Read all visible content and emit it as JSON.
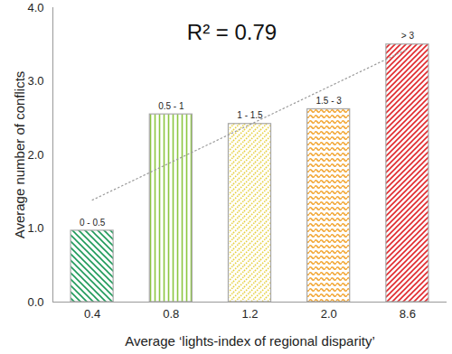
{
  "chart_data": {
    "type": "bar",
    "categories": [
      "0.4",
      "0.8",
      "1.2",
      "2.0",
      "8.6"
    ],
    "values": [
      0.97,
      2.55,
      2.42,
      2.62,
      3.5
    ],
    "colors": [
      "#1f9a5a",
      "#8cc640",
      "#e6cf3c",
      "#f2a531",
      "#e0282c"
    ],
    "bar_labels": [
      "0 - 0.5",
      "0.5 - 1",
      "1 - 1.5",
      "1.5 - 3",
      "> 3"
    ],
    "annotations": [
      "R² = 0.79"
    ],
    "xlabel": "Average ‘lights-index of regional disparity’",
    "ylabel": "Average number of conflicts",
    "ylim": [
      0,
      4
    ],
    "yticks": [
      0,
      1,
      2,
      3,
      4
    ],
    "grid": false
  }
}
